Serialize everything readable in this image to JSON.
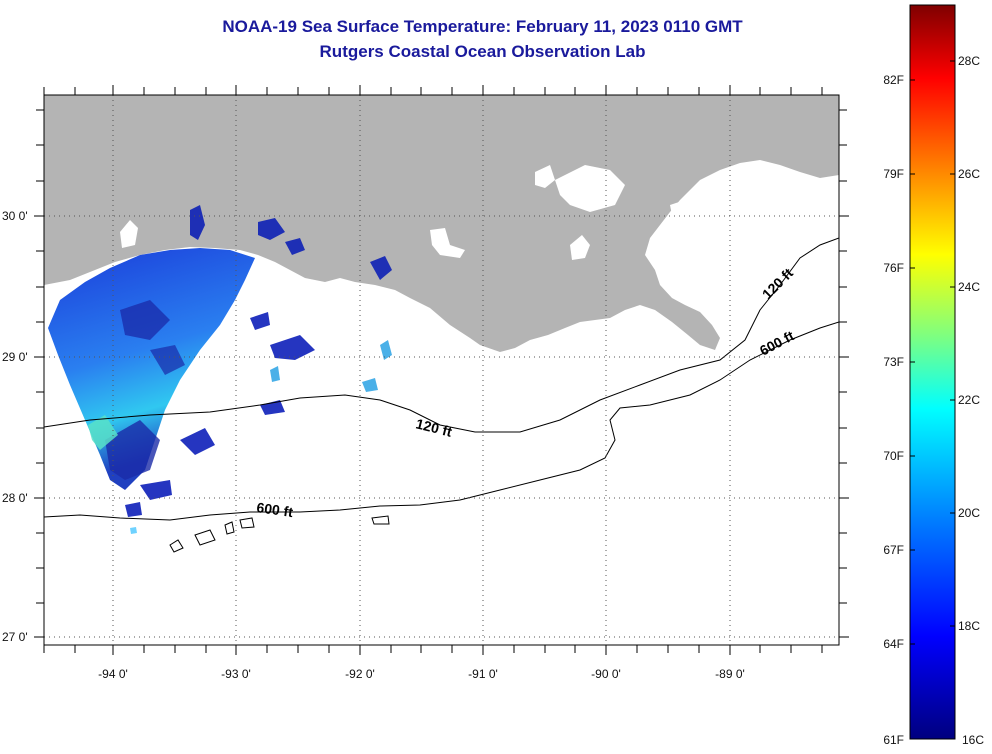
{
  "header": {
    "title": "NOAA-19 Sea Surface Temperature:  February 11, 2023 0110 GMT",
    "subtitle": "Rutgers Coastal Ocean Observation Lab"
  },
  "map": {
    "lat_labels": [
      "30 0'",
      "29 0'",
      "28 0'",
      "27 0'"
    ],
    "lon_labels": [
      "-94 0'",
      "-93 0'",
      "-92 0'",
      "-91 0'",
      "-90 0'",
      "-89 0'"
    ],
    "land_color": "#b4b4b4",
    "ocean_color": "#ffffff",
    "contours": [
      {
        "depth": "120 ft",
        "labels": [
          "120 ft",
          "120 ft"
        ]
      },
      {
        "depth": "600 ft",
        "labels": [
          "600 ft",
          "600 ft"
        ]
      }
    ]
  },
  "colorbar": {
    "fahrenheit": [
      "82F",
      "79F",
      "76F",
      "73F",
      "70F",
      "67F",
      "64F",
      "61F"
    ],
    "celsius": [
      "28C",
      "26C",
      "24C",
      "22C",
      "20C",
      "18C",
      "16C"
    ],
    "colors": [
      "#00007f",
      "#0000ff",
      "#007fff",
      "#00ffff",
      "#7fff7f",
      "#ffff00",
      "#ff7f00",
      "#ff0000",
      "#7f0000"
    ]
  }
}
